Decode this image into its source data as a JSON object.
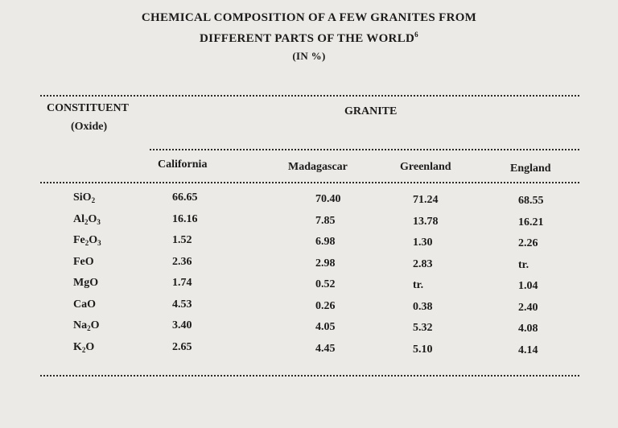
{
  "title": {
    "line1": "CHEMICAL COMPOSITION OF A FEW GRANITES FROM",
    "line2": "DIFFERENT PARTS OF THE WORLD",
    "footnote_mark": "6",
    "line3": "(IN %)"
  },
  "table": {
    "constituent_header": "CONSTITUENT",
    "constituent_sub": "(Oxide)",
    "group_header": "GRANITE",
    "columns": [
      "California",
      "Madagascar",
      "Greenland",
      "England"
    ],
    "rows": [
      {
        "oxide": [
          "SiO",
          "2",
          ""
        ],
        "values": [
          "66.65",
          "70.40",
          "71.24",
          "68.55"
        ]
      },
      {
        "oxide": [
          "Al",
          "2",
          "O",
          "3"
        ],
        "values": [
          "16.16",
          "7.85",
          "13.78",
          "16.21"
        ]
      },
      {
        "oxide": [
          "Fe",
          "2",
          "O",
          "3"
        ],
        "values": [
          "1.52",
          "6.98",
          "1.30",
          "2.26"
        ]
      },
      {
        "oxide": [
          "FeO"
        ],
        "values": [
          "2.36",
          "2.98",
          "2.83",
          "tr."
        ]
      },
      {
        "oxide": [
          "MgO"
        ],
        "values": [
          "1.74",
          "0.52",
          "tr.",
          "1.04"
        ]
      },
      {
        "oxide": [
          "CaO"
        ],
        "values": [
          "4.53",
          "0.26",
          "0.38",
          "2.40"
        ]
      },
      {
        "oxide": [
          "Na",
          "2",
          "O"
        ],
        "values": [
          "3.40",
          "4.05",
          "5.32",
          "4.08"
        ]
      },
      {
        "oxide": [
          "K",
          "2",
          "O"
        ],
        "values": [
          "2.65",
          "4.45",
          "5.10",
          "4.14"
        ]
      }
    ]
  }
}
